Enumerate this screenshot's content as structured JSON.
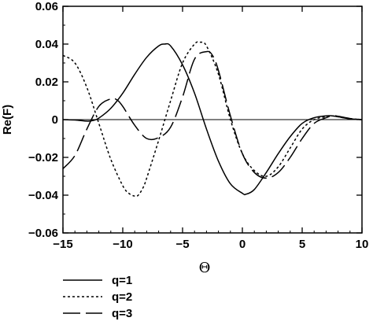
{
  "chart_data": {
    "type": "line",
    "title": "",
    "xlabel": "Θ",
    "ylabel": "Re(F)",
    "xlim": [
      -15,
      10
    ],
    "ylim": [
      -0.06,
      0.06
    ],
    "xticks": [
      -15,
      -10,
      -5,
      0,
      5,
      10
    ],
    "xtick_labels": [
      "−15",
      "−10",
      "−5",
      "0",
      "5",
      "10"
    ],
    "yticks": [
      -0.06,
      -0.04,
      -0.02,
      0,
      0.02,
      0.04,
      0.06
    ],
    "ytick_labels": [
      "−0.06",
      "−0.04",
      "−0.02",
      "0",
      "0.02",
      "0.04",
      "0.06"
    ],
    "grid": false,
    "legend_position": "below-left",
    "series": [
      {
        "name": "q=1",
        "style": "solid",
        "x": [
          -15,
          -14,
          -13,
          -12.5,
          -12,
          -11,
          -10,
          -9,
          -8,
          -7,
          -6.5,
          -6,
          -5,
          -4,
          -3,
          -2,
          -1,
          0,
          0.3,
          1,
          2,
          3,
          4,
          5,
          6,
          7,
          7.5,
          8,
          9,
          10
        ],
        "y": [
          0.0,
          -0.0002,
          -0.0008,
          -0.0005,
          0.0008,
          0.006,
          0.014,
          0.024,
          0.033,
          0.039,
          0.04,
          0.039,
          0.029,
          0.014,
          -0.005,
          -0.022,
          -0.034,
          -0.039,
          -0.0395,
          -0.037,
          -0.028,
          -0.018,
          -0.009,
          -0.002,
          0.001,
          0.002,
          0.002,
          0.0015,
          0.0004,
          0.0
        ]
      },
      {
        "name": "q=2",
        "style": "dotted",
        "x": [
          -15,
          -14,
          -13,
          -12,
          -11,
          -10,
          -9.5,
          -9,
          -8.7,
          -8.3,
          -8,
          -7,
          -6,
          -5,
          -4,
          -3.5,
          -3,
          -2,
          -1,
          0,
          1,
          2,
          3,
          4,
          5,
          6,
          7,
          7.5,
          8,
          9,
          10
        ],
        "y": [
          0.034,
          0.03,
          0.017,
          -0.002,
          -0.021,
          -0.035,
          -0.039,
          -0.0405,
          -0.04,
          -0.036,
          -0.031,
          -0.011,
          0.01,
          0.03,
          0.04,
          0.041,
          0.039,
          0.024,
          0.0,
          -0.018,
          -0.027,
          -0.03,
          -0.025,
          -0.015,
          -0.005,
          0.0,
          0.0015,
          0.002,
          0.0015,
          0.0005,
          0.0
        ]
      },
      {
        "name": "q=3",
        "style": "dashed",
        "x": [
          -15,
          -14,
          -13,
          -12,
          -11,
          -10.5,
          -10,
          -9,
          -8,
          -7,
          -6,
          -5,
          -4,
          -3,
          -2.5,
          -2,
          -1,
          0,
          1,
          2,
          3,
          4,
          5,
          6,
          7,
          7.5,
          8,
          9,
          10
        ],
        "y": [
          -0.026,
          -0.019,
          -0.005,
          0.007,
          0.011,
          0.0105,
          0.007,
          -0.003,
          -0.01,
          -0.0095,
          -0.004,
          0.012,
          0.032,
          0.036,
          0.034,
          0.026,
          0.002,
          -0.018,
          -0.028,
          -0.031,
          -0.028,
          -0.02,
          -0.01,
          -0.002,
          0.001,
          0.002,
          0.0018,
          0.0006,
          0.0
        ]
      }
    ]
  }
}
